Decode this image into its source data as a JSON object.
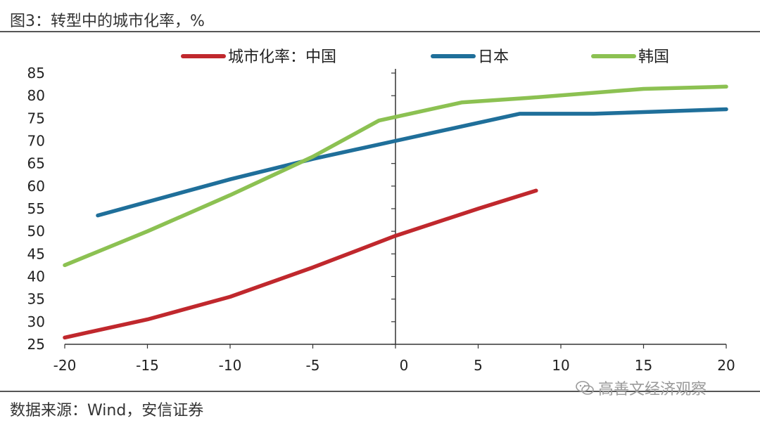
{
  "header": {
    "title": "图3：转型中的城市化率，%"
  },
  "footer": {
    "source": "数据来源：Wind，安信证券",
    "watermark": "高善文经济观察",
    "watermark_icon": "wechat-icon"
  },
  "chart_data": {
    "type": "line",
    "title": "图3：转型中的城市化率，%",
    "xlabel": "",
    "ylabel": "",
    "xlim": [
      -20,
      20
    ],
    "ylim": [
      25,
      85
    ],
    "xticks": [
      -20,
      -15,
      -10,
      -5,
      0,
      5,
      10,
      15,
      20
    ],
    "yticks": [
      25,
      30,
      35,
      40,
      45,
      50,
      55,
      60,
      65,
      70,
      75,
      80,
      85
    ],
    "grid": false,
    "legend_position": "top",
    "series": [
      {
        "name": "城市化率：中国",
        "color": "#c0282d",
        "points": [
          [
            -20,
            26.5
          ],
          [
            -15,
            30.5
          ],
          [
            -10,
            35.5
          ],
          [
            -5,
            42
          ],
          [
            0,
            49
          ],
          [
            5,
            55
          ],
          [
            8.5,
            59
          ]
        ]
      },
      {
        "name": "日本",
        "color": "#1f6f9a",
        "points": [
          [
            -18,
            53.5
          ],
          [
            -10,
            61.5
          ],
          [
            -5,
            66
          ],
          [
            0,
            70
          ],
          [
            7.5,
            76
          ],
          [
            12,
            76
          ],
          [
            20,
            77
          ]
        ]
      },
      {
        "name": "韩国",
        "color": "#8cc152",
        "points": [
          [
            -20,
            42.5
          ],
          [
            -15,
            50
          ],
          [
            -10,
            58
          ],
          [
            -5,
            66.5
          ],
          [
            -1,
            74.5
          ],
          [
            4,
            78.5
          ],
          [
            8,
            79.5
          ],
          [
            15,
            81.5
          ],
          [
            20,
            82
          ]
        ]
      }
    ]
  }
}
